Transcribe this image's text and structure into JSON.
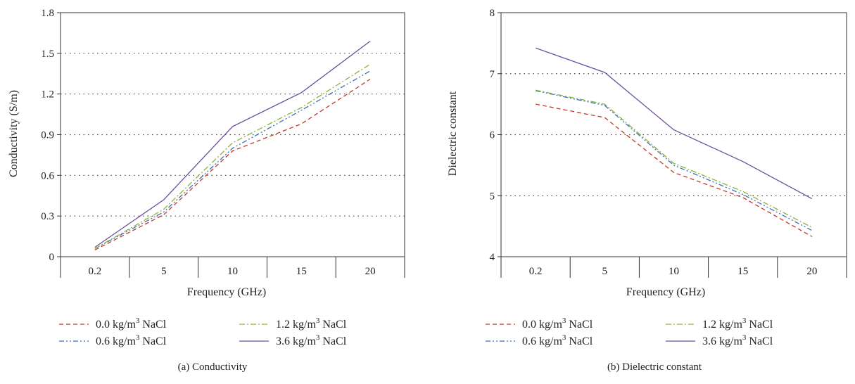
{
  "chart_data": [
    {
      "type": "line",
      "caption": "(a)  Conductivity",
      "xlabel": "Frequency (GHz)",
      "ylabel": "Conductivity (S/m)",
      "categories": [
        "0.2",
        "5",
        "10",
        "15",
        "20"
      ],
      "ylim": [
        0,
        1.8
      ],
      "yticks": [
        "0",
        "0.3",
        "0.6",
        "0.9",
        "1.2",
        "1.5",
        "1.8"
      ],
      "grid": "horizontal-dotted",
      "legend_placement": "bottom",
      "series": [
        {
          "name": "0.0 kg/m³ NaCl",
          "unit_sup": "3",
          "color": "#c0392b",
          "dash": "6,4",
          "values": [
            0.05,
            0.31,
            0.78,
            0.98,
            1.31
          ]
        },
        {
          "name": "0.6 kg/m³ NaCl",
          "unit_sup": "3",
          "color": "#3b6fb6",
          "dash": "7,3,2,3,2,3",
          "values": [
            0.06,
            0.33,
            0.8,
            1.08,
            1.37
          ]
        },
        {
          "name": "1.2 kg/m³ NaCl",
          "unit_sup": "3",
          "color": "#8db23b",
          "dash": "8,3,2,3",
          "values": [
            0.06,
            0.35,
            0.84,
            1.1,
            1.42
          ]
        },
        {
          "name": "3.6 kg/m³ NaCl",
          "unit_sup": "3",
          "color": "#6c4f9c",
          "dash": "",
          "values": [
            0.07,
            0.42,
            0.96,
            1.21,
            1.59
          ]
        }
      ]
    },
    {
      "type": "line",
      "caption": "(b)  Dielectric constant",
      "xlabel": "Frequency (GHz)",
      "ylabel": "Dielectric constant",
      "categories": [
        "0.2",
        "5",
        "10",
        "15",
        "20"
      ],
      "ylim": [
        4,
        8
      ],
      "yticks": [
        "4",
        "5",
        "6",
        "7",
        "8"
      ],
      "grid": "horizontal-dotted",
      "legend_placement": "bottom",
      "series": [
        {
          "name": "0.0 kg/m³ NaCl",
          "unit_sup": "3",
          "color": "#c0392b",
          "dash": "6,4",
          "values": [
            6.5,
            6.28,
            5.38,
            4.97,
            4.33
          ]
        },
        {
          "name": "0.6 kg/m³ NaCl",
          "unit_sup": "3",
          "color": "#3b6fb6",
          "dash": "7,3,2,3,2,3",
          "values": [
            6.72,
            6.48,
            5.5,
            5.02,
            4.43
          ]
        },
        {
          "name": "1.2 kg/m³ NaCl",
          "unit_sup": "3",
          "color": "#8db23b",
          "dash": "8,3,2,3",
          "values": [
            6.73,
            6.5,
            5.53,
            5.07,
            4.48
          ]
        },
        {
          "name": "3.6 kg/m³ NaCl",
          "unit_sup": "3",
          "color": "#6c4f9c",
          "dash": "",
          "values": [
            7.42,
            7.02,
            6.08,
            5.56,
            4.95
          ]
        }
      ]
    }
  ],
  "legend": {
    "entries": [
      {
        "prefix": "0.0 kg/m",
        "sup": "3",
        "suffix": " NaCl"
      },
      {
        "prefix": "1.2 kg/m",
        "sup": "3",
        "suffix": " NaCl"
      },
      {
        "prefix": "0.6 kg/m",
        "sup": "3",
        "suffix": " NaCl"
      },
      {
        "prefix": "3.6 kg/m",
        "sup": "3",
        "suffix": " NaCl"
      }
    ]
  }
}
